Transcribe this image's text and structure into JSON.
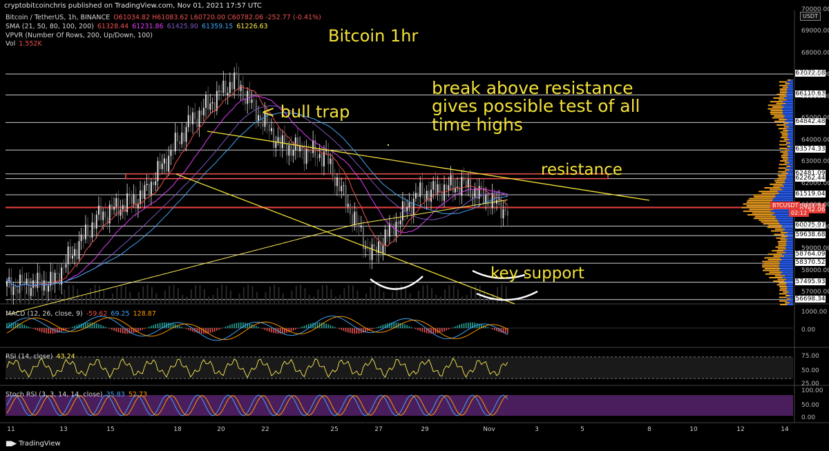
{
  "publisher": "cryptobitcoinchris published on TradingView.com, Nov 01, 2021 17:57 UTC",
  "legend": {
    "symbol": "Bitcoin / TetherUS, 1h, BINANCE",
    "ohlc": "O61034.82 H61083.62 L60720.00 C60782.06 -252.77 (-0.41%)",
    "sma_label": "SMA (21, 50, 80, 100, 200)",
    "sma_values": [
      "61328.44",
      "61231.86",
      "61425.90",
      "61359.15",
      "61226.63"
    ],
    "vpvr": "VPVR (Number Of Rows, 200, Up/Down, 100)",
    "vol_label": "Vol",
    "vol_value": "1.552K"
  },
  "annotations": {
    "title": "Bitcoin 1hr",
    "bull_trap": "< bull trap",
    "break_note_line1": "break above resistance",
    "break_note_line2": "gives possible test of all",
    "break_note_line3": "time highs",
    "resistance": "resistance",
    "key_support": "key support"
  },
  "price_axis": {
    "currency_box": "USDT",
    "ticks": [
      "70000.00",
      "69000.00",
      "68000.00",
      "67000.00",
      "66000.00",
      "65000.00",
      "64000.00",
      "63000.00",
      "62000.00",
      "61000.00",
      "60000.00",
      "59000.00",
      "58000.00",
      "57000.00"
    ],
    "levels": [
      "67072.68",
      "66110.63",
      "64842.48",
      "63574.33",
      "62481.09",
      "62262.44",
      "61519.04",
      "60950.56",
      "60931.54",
      "60075.97",
      "59638.68",
      "58764.09",
      "58370.52",
      "57495.93",
      "56698.34"
    ],
    "current_symbol": "BTCUSDT",
    "current_price": "60782.06",
    "countdown": "02:12"
  },
  "indicators": {
    "macd_label": "MACD (12, 26, close, 9)",
    "macd_values": [
      "-59.62",
      "69.25",
      "128.87"
    ],
    "macd_ticks": [
      "1000.00",
      "0.00"
    ],
    "rsi_label": "RSI (14, close)",
    "rsi_value": "43.24",
    "rsi_ticks": [
      "75.00",
      "50.00",
      "25.00"
    ],
    "stoch_label": "Stoch RSI (3, 3, 14, 14, close)",
    "stoch_values": [
      "35.83",
      "52.73"
    ],
    "stoch_ticks": [
      "100.00",
      "50.00",
      "0.00"
    ]
  },
  "x_axis": {
    "labels": [
      "11",
      "13",
      "15",
      "18",
      "20",
      "22",
      "25",
      "27",
      "29",
      "Nov",
      "3",
      "5",
      "8",
      "10",
      "12",
      "14"
    ]
  },
  "footer": {
    "brand": "TradingView"
  },
  "colors": {
    "annotation": "#f5e23a",
    "up": "#26a69a",
    "down": "#ef5350",
    "vpvr_up": "#2962ff",
    "vpvr_down": "#f0a020",
    "stoch_band": "#4a1e5c"
  },
  "chart_data": {
    "type": "line",
    "title": "Bitcoin 1hr",
    "symbol": "Bitcoin / TetherUS, 1h, BINANCE",
    "ylim": [
      56500,
      70000
    ],
    "x_labels": [
      "11",
      "13",
      "15",
      "18",
      "20",
      "22",
      "25",
      "27",
      "29",
      "Nov",
      "3",
      "5",
      "8",
      "10",
      "12",
      "14"
    ],
    "close_path_approx": [
      {
        "x": "11",
        "y": 57300
      },
      {
        "x": "13",
        "y": 57500
      },
      {
        "x": "15",
        "y": 60500
      },
      {
        "x": "18",
        "y": 61500
      },
      {
        "x": "20",
        "y": 64800
      },
      {
        "x": "21",
        "y": 66800
      },
      {
        "x": "22",
        "y": 63800
      },
      {
        "x": "25",
        "y": 63300
      },
      {
        "x": "27",
        "y": 58700
      },
      {
        "x": "28",
        "y": 61500
      },
      {
        "x": "29",
        "y": 62000
      },
      {
        "x": "Nov",
        "y": 60782.06
      }
    ],
    "horizontal_levels": [
      67072.68,
      66110.63,
      64842.48,
      63574.33,
      62481.09,
      62262.44,
      61519.04,
      60950.56,
      60931.54,
      60075.97,
      59638.68,
      58764.09,
      58370.52,
      57495.93,
      56698.34
    ],
    "current_price": 60782.06,
    "rsi_last": 43.24,
    "stoch_k": 35.83,
    "stoch_d": 52.73,
    "macd": {
      "macd": -59.62,
      "signal": 69.25,
      "hist": 128.87
    }
  }
}
